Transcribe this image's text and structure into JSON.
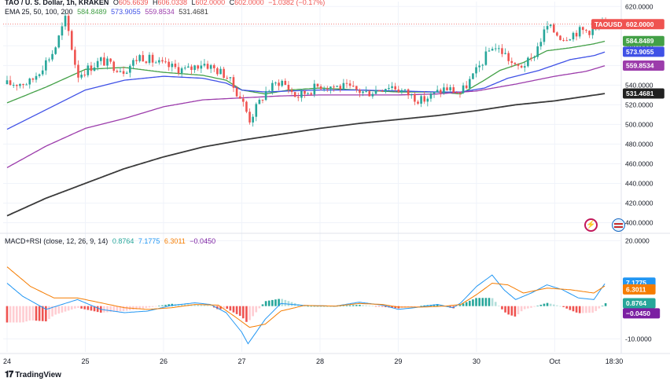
{
  "header": {
    "symbol": "TAO / U. S. Dollar, 1h, KRAKEN",
    "o_label": "O",
    "o": "605.6639",
    "h_label": "H",
    "h": "606.0338",
    "l_label": "L",
    "l": "602.0000",
    "c_label": "C",
    "c": "602.0000",
    "change": "−1.0382 (−0.17%)",
    "ema_label": "EMA 25, 50, 100, 200",
    "ema25": "584.8489",
    "ema50": "573.9055",
    "ema100": "559.8534",
    "ema200": "531.4681",
    "macd_label": "MACD+RSI (close, 12, 26, 9, 14)",
    "macd_v1": "0.8764",
    "macd_v2": "7.1775",
    "macd_v3": "6.3011",
    "macd_v4": "−0.0450"
  },
  "price_badges": {
    "symbol_tag": "TAOUSD",
    "last": "602.0000",
    "ema25": "584.8489",
    "ema50": "573.9055",
    "ema100": "559.8534",
    "ema200": "531.4681"
  },
  "macd_badges": {
    "macd": "7.1775",
    "signal": "6.3011",
    "hist": "0.8764",
    "rsi": "−0.0450"
  },
  "branding": {
    "name": "TradingView"
  },
  "colors": {
    "up": "#26a69a",
    "down": "#ef5350",
    "ema25": "#43a047",
    "ema50": "#3f51e6",
    "ema100": "#9c3cab",
    "ema200": "#3a3a3a",
    "macd": "#2196f3",
    "signal": "#f57c00"
  },
  "chart_data": [
    {
      "type": "candlestick",
      "title": "TAO / U. S. Dollar, 1h, KRAKEN",
      "ylim": [
        390,
        625
      ],
      "yticks": [
        "620.0000",
        "600.0000",
        "580.0000",
        "560.0000",
        "540.0000",
        "520.0000",
        "500.0000",
        "480.0000",
        "460.0000",
        "440.0000",
        "420.0000",
        "400.0000"
      ],
      "ytick_values": [
        620,
        600,
        580,
        560,
        540,
        520,
        500,
        480,
        460,
        440,
        420,
        400
      ],
      "x_labels": [
        "24",
        "25",
        "26",
        "27",
        "28",
        "29",
        "30",
        "Oct",
        "18:30"
      ],
      "x_label_days": [
        0,
        1,
        2,
        3,
        4,
        5,
        6,
        7,
        7.76
      ],
      "x_range_days": [
        -0.05,
        7.85
      ],
      "ohlc_anchor_points": [
        [
          0.0,
          541
        ],
        [
          0.3,
          543
        ],
        [
          0.6,
          575
        ],
        [
          0.75,
          608
        ],
        [
          0.9,
          550
        ],
        [
          1.2,
          565
        ],
        [
          1.5,
          555
        ],
        [
          1.7,
          570
        ],
        [
          2.0,
          560
        ],
        [
          2.3,
          555
        ],
        [
          2.5,
          563
        ],
        [
          2.8,
          550
        ],
        [
          3.0,
          525
        ],
        [
          3.1,
          505
        ],
        [
          3.3,
          533
        ],
        [
          3.5,
          545
        ],
        [
          3.7,
          528
        ],
        [
          4.0,
          540
        ],
        [
          4.3,
          538
        ],
        [
          4.6,
          532
        ],
        [
          4.9,
          540
        ],
        [
          5.1,
          532
        ],
        [
          5.3,
          524
        ],
        [
          5.6,
          537
        ],
        [
          5.8,
          532
        ],
        [
          6.0,
          554
        ],
        [
          6.2,
          580
        ],
        [
          6.35,
          573
        ],
        [
          6.5,
          557
        ],
        [
          6.7,
          565
        ],
        [
          6.9,
          600
        ],
        [
          7.1,
          588
        ],
        [
          7.3,
          595
        ],
        [
          7.5,
          596
        ],
        [
          7.6,
          602
        ],
        [
          7.65,
          602
        ]
      ],
      "ema_anchor_points": {
        "ema25": [
          [
            0,
            522
          ],
          [
            0.5,
            538
          ],
          [
            1,
            556
          ],
          [
            1.5,
            558
          ],
          [
            2,
            553
          ],
          [
            2.5,
            550
          ],
          [
            2.8,
            545
          ],
          [
            3,
            535
          ],
          [
            3.3,
            531
          ],
          [
            3.6,
            535
          ],
          [
            4,
            537
          ],
          [
            4.5,
            535
          ],
          [
            5,
            533
          ],
          [
            5.5,
            533
          ],
          [
            5.8,
            531
          ],
          [
            6.1,
            545
          ],
          [
            6.3,
            555
          ],
          [
            6.6,
            563
          ],
          [
            6.9,
            575
          ],
          [
            7.2,
            578
          ],
          [
            7.5,
            582
          ],
          [
            7.65,
            584.8
          ]
        ],
        "ema50": [
          [
            0,
            495
          ],
          [
            0.5,
            515
          ],
          [
            1,
            535
          ],
          [
            1.5,
            545
          ],
          [
            2,
            549
          ],
          [
            2.5,
            547
          ],
          [
            2.8,
            542
          ],
          [
            3,
            535
          ],
          [
            3.3,
            533
          ],
          [
            3.6,
            534
          ],
          [
            4,
            535
          ],
          [
            4.5,
            535
          ],
          [
            5,
            534
          ],
          [
            5.5,
            533
          ],
          [
            5.8,
            533
          ],
          [
            6.1,
            537
          ],
          [
            6.4,
            547
          ],
          [
            6.8,
            555
          ],
          [
            7.2,
            566
          ],
          [
            7.5,
            570
          ],
          [
            7.65,
            573.9
          ]
        ],
        "ema100": [
          [
            0,
            456
          ],
          [
            0.5,
            478
          ],
          [
            1,
            496
          ],
          [
            1.5,
            506
          ],
          [
            2,
            518
          ],
          [
            2.5,
            525
          ],
          [
            3,
            527
          ],
          [
            3.5,
            529
          ],
          [
            4,
            530
          ],
          [
            4.5,
            530
          ],
          [
            5,
            530
          ],
          [
            5.5,
            531
          ],
          [
            6,
            534
          ],
          [
            6.5,
            541
          ],
          [
            7,
            549
          ],
          [
            7.4,
            554
          ],
          [
            7.65,
            559.9
          ]
        ],
        "ema200": [
          [
            0,
            407
          ],
          [
            0.5,
            425
          ],
          [
            1,
            440
          ],
          [
            1.5,
            455
          ],
          [
            2,
            467
          ],
          [
            2.5,
            477
          ],
          [
            3,
            484
          ],
          [
            3.5,
            490
          ],
          [
            4,
            496
          ],
          [
            4.5,
            501
          ],
          [
            5,
            505
          ],
          [
            5.5,
            509
          ],
          [
            6,
            514
          ],
          [
            6.5,
            520
          ],
          [
            7,
            524
          ],
          [
            7.65,
            531.5
          ]
        ]
      },
      "last_price": 602.0
    },
    {
      "type": "macd",
      "title": "MACD+RSI (close, 12, 26, 9, 14)",
      "ylim": [
        -14,
        22
      ],
      "yticks": [
        "20.0000",
        "-10.0000"
      ],
      "ytick_values": [
        20,
        -10
      ],
      "macd_anchor_points": [
        [
          0,
          7
        ],
        [
          0.2,
          3
        ],
        [
          0.5,
          -1
        ],
        [
          0.7,
          0.5
        ],
        [
          0.9,
          2
        ],
        [
          1.2,
          -1
        ],
        [
          1.5,
          -2
        ],
        [
          1.8,
          -1.5
        ],
        [
          2.1,
          0.2
        ],
        [
          2.4,
          1
        ],
        [
          2.6,
          0.5
        ],
        [
          2.8,
          -2
        ],
        [
          3.0,
          -8
        ],
        [
          3.08,
          -11.5
        ],
        [
          3.3,
          -4
        ],
        [
          3.5,
          0.8
        ],
        [
          3.8,
          0.2
        ],
        [
          4.2,
          0
        ],
        [
          4.5,
          1.2
        ],
        [
          4.8,
          0.3
        ],
        [
          5.0,
          -1
        ],
        [
          5.2,
          -0.5
        ],
        [
          5.5,
          0.5
        ],
        [
          5.7,
          -0.5
        ],
        [
          5.8,
          1
        ],
        [
          6.0,
          6
        ],
        [
          6.2,
          9.5
        ],
        [
          6.35,
          5
        ],
        [
          6.5,
          2
        ],
        [
          6.7,
          4
        ],
        [
          6.9,
          6.5
        ],
        [
          7.1,
          5
        ],
        [
          7.3,
          2.5
        ],
        [
          7.5,
          2
        ],
        [
          7.65,
          7.18
        ]
      ],
      "signal_anchor_points": [
        [
          0,
          12
        ],
        [
          0.3,
          6
        ],
        [
          0.6,
          2.5
        ],
        [
          0.9,
          2.5
        ],
        [
          1.2,
          1
        ],
        [
          1.5,
          -0.5
        ],
        [
          1.8,
          -1
        ],
        [
          2.1,
          -0.5
        ],
        [
          2.4,
          0.5
        ],
        [
          2.7,
          0.3
        ],
        [
          2.9,
          -3
        ],
        [
          3.1,
          -6.5
        ],
        [
          3.3,
          -5.5
        ],
        [
          3.5,
          -1.5
        ],
        [
          3.8,
          0.2
        ],
        [
          4.2,
          0
        ],
        [
          4.5,
          0.8
        ],
        [
          4.8,
          0.5
        ],
        [
          5.0,
          -0.3
        ],
        [
          5.3,
          -0.3
        ],
        [
          5.6,
          0
        ],
        [
          5.8,
          0.5
        ],
        [
          6.0,
          3.5
        ],
        [
          6.2,
          7
        ],
        [
          6.4,
          6.5
        ],
        [
          6.6,
          4
        ],
        [
          6.9,
          5.5
        ],
        [
          7.2,
          5
        ],
        [
          7.5,
          4
        ],
        [
          7.65,
          6.3
        ]
      ]
    }
  ]
}
